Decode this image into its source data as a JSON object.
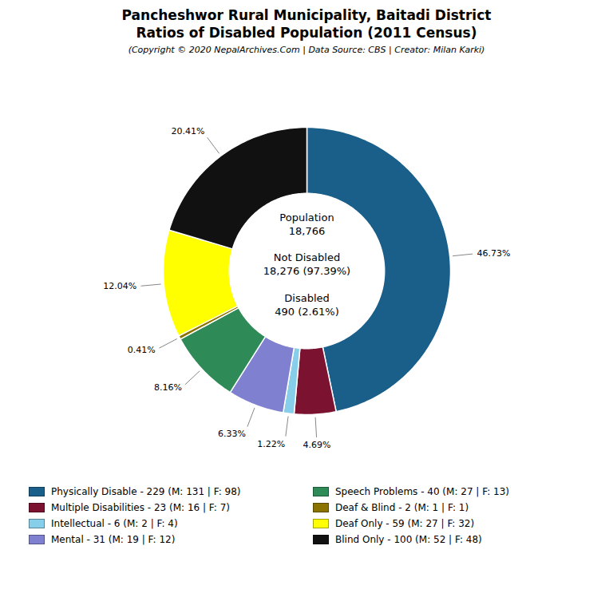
{
  "chart_data": {
    "type": "donut",
    "title": "Pancheshwor Rural Municipality, Baitadi District\nRatios of Disabled Population (2011 Census)",
    "subtitle": "(Copyright © 2020 NepalArchives.Com | Data Source: CBS | Creator: Milan Karki)",
    "categories": [
      "Physically Disable - 229 (M: 131 | F: 98)",
      "Multiple Disabilities - 23 (M: 16 | F: 7)",
      "Intellectual - 6 (M: 2 | F: 4)",
      "Mental - 31 (M: 19 | F: 12)",
      "Speech Problems - 40 (M: 27 | F: 13)",
      "Deaf & Blind - 2 (M: 1 | F: 1)",
      "Deaf Only - 59 (M: 27 | F: 32)",
      "Blind Only - 100 (M: 52 | F: 48)"
    ],
    "values": [
      46.73,
      4.69,
      1.22,
      6.33,
      8.16,
      0.41,
      12.04,
      20.41
    ],
    "value_labels": [
      "46.73%",
      "4.69%",
      "1.22%",
      "6.33%",
      "8.16%",
      "0.41%",
      "12.04%",
      "20.41%"
    ],
    "colors": [
      "#1a5f8a",
      "#7b1230",
      "#87ceeb",
      "#8080d0",
      "#2e8b57",
      "#8b7300",
      "#ffff00",
      "#111111"
    ],
    "data_labels": true,
    "legend": "bottom",
    "annotations": [
      "Population",
      "18,766",
      "Not Disabled",
      "18,276 (97.39%)",
      "Disabled",
      "490 (2.61%)"
    ]
  }
}
